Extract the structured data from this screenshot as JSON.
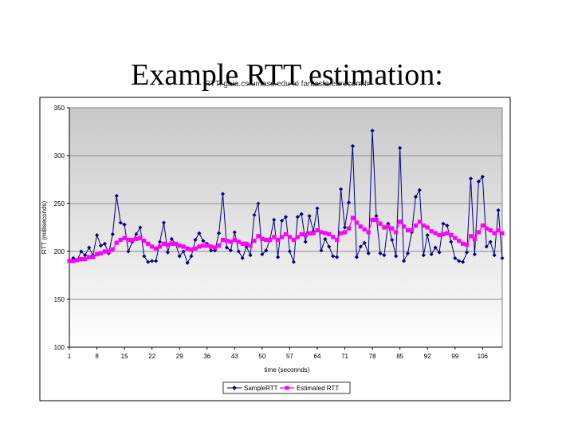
{
  "slide": {
    "title": "Example RTT estimation:"
  },
  "chart_data": {
    "type": "line",
    "title": "RTT: gaia.cs.umass.edu to fantasia.eurecom.fr",
    "xlabel": "time (seconnds)",
    "ylabel": "RTT (milliseconds)",
    "ylim": [
      100,
      350
    ],
    "yticks": [
      100,
      150,
      200,
      250,
      300,
      350
    ],
    "xlim": [
      1,
      111
    ],
    "xticks": [
      1,
      8,
      15,
      22,
      29,
      36,
      43,
      50,
      57,
      64,
      71,
      78,
      85,
      92,
      99,
      106
    ],
    "grid": true,
    "legend_position": "bottom",
    "series": [
      {
        "name": "SampleRTT",
        "color": "#000080",
        "marker": "diamond",
        "values": [
          190,
          193,
          191,
          200,
          196,
          204,
          196,
          217,
          206,
          208,
          198,
          218,
          258,
          230,
          228,
          200,
          210,
          218,
          225,
          195,
          189,
          190,
          190,
          210,
          230,
          199,
          213,
          208,
          195,
          200,
          188,
          195,
          212,
          219,
          211,
          208,
          201,
          201,
          219,
          260,
          204,
          201,
          220,
          200,
          193,
          205,
          196,
          238,
          250,
          197,
          201,
          213,
          233,
          194,
          232,
          236,
          200,
          189,
          236,
          239,
          210,
          237,
          221,
          245,
          201,
          213,
          205,
          195,
          194,
          265,
          225,
          251,
          310,
          194,
          205,
          209,
          198,
          326,
          237,
          198,
          196,
          229,
          212,
          195,
          308,
          190,
          198,
          220,
          257,
          264,
          196,
          217,
          197,
          204,
          199,
          229,
          227,
          210,
          193,
          190,
          189,
          199,
          276,
          197,
          273,
          278,
          205,
          210,
          196,
          243,
          193
        ]
      },
      {
        "name": "Estimated RTT",
        "color": "#ff00ff",
        "marker": "square",
        "values": [
          190,
          190,
          191,
          192,
          192,
          194,
          194,
          197,
          198,
          200,
          200,
          202,
          209,
          212,
          214,
          212,
          212,
          213,
          214,
          211,
          208,
          205,
          203,
          205,
          208,
          207,
          208,
          208,
          206,
          205,
          203,
          202,
          203,
          205,
          206,
          206,
          205,
          204,
          206,
          212,
          211,
          210,
          212,
          210,
          208,
          208,
          206,
          211,
          216,
          213,
          212,
          212,
          215,
          212,
          215,
          218,
          215,
          212,
          215,
          218,
          217,
          219,
          219,
          222,
          220,
          219,
          218,
          215,
          212,
          219,
          220,
          224,
          235,
          230,
          226,
          223,
          220,
          233,
          233,
          229,
          225,
          226,
          224,
          220,
          231,
          226,
          222,
          222,
          227,
          231,
          227,
          225,
          221,
          219,
          217,
          218,
          219,
          217,
          214,
          211,
          208,
          207,
          216,
          213,
          220,
          227,
          224,
          222,
          219,
          222,
          219
        ]
      }
    ]
  }
}
